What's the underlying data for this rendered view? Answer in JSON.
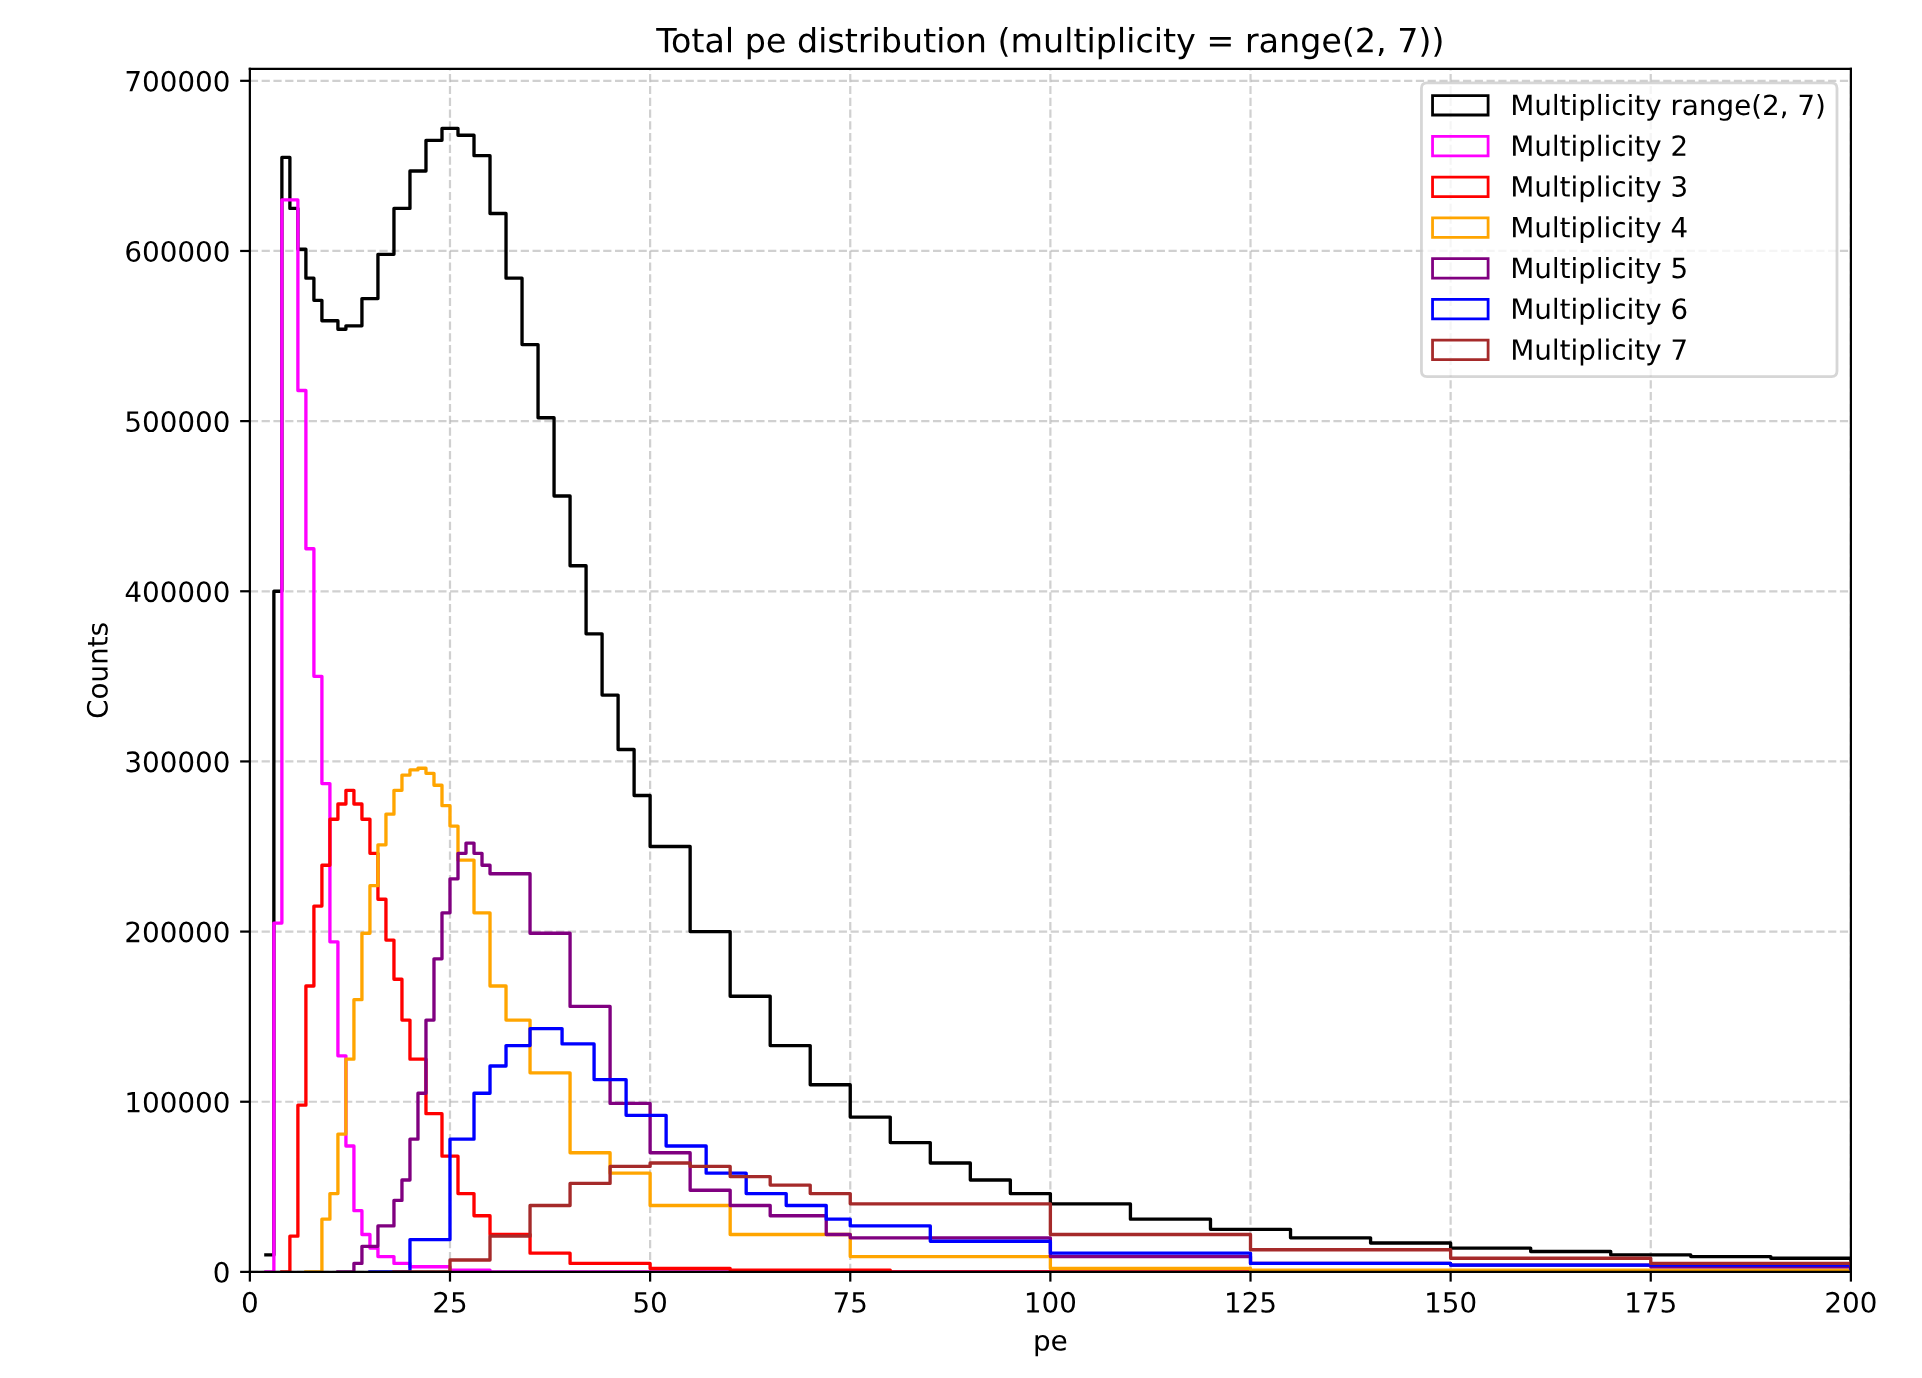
{
  "chart_data": {
    "type": "step",
    "title": "Total pe distribution (multiplicity = range(2, 7))",
    "xlabel": "pe",
    "ylabel": "Counts",
    "xlim": [
      0,
      200
    ],
    "xticks": [
      0,
      25,
      50,
      75,
      100,
      125,
      150,
      175,
      200
    ],
    "ylim": [
      0,
      707000
    ],
    "yticks": [
      0,
      100000,
      200000,
      300000,
      400000,
      500000,
      600000,
      700000
    ],
    "grid": true,
    "legend": "top right",
    "series": [
      {
        "name": "Multiplicity range(2, 7)",
        "color": "#000000",
        "x": [
          2,
          3,
          4,
          5,
          6,
          7,
          8,
          9,
          11,
          12,
          14,
          16,
          18,
          20,
          22,
          24,
          26,
          28,
          30,
          32,
          34,
          36,
          38,
          40,
          42,
          44,
          46,
          48,
          50,
          55,
          60,
          65,
          70,
          75,
          80,
          85,
          90,
          95,
          100,
          110,
          120,
          130,
          140,
          150,
          160,
          170,
          180,
          190,
          200
        ],
        "values": [
          10000,
          400000,
          655000,
          625000,
          601000,
          584000,
          571000,
          559000,
          554000,
          556000,
          572000,
          598000,
          625000,
          647000,
          665000,
          672000,
          668000,
          656000,
          622000,
          584000,
          545000,
          502000,
          456000,
          415000,
          375000,
          339000,
          307000,
          280000,
          250000,
          200000,
          162000,
          133000,
          110000,
          91000,
          76000,
          64000,
          54000,
          46000,
          40000,
          31000,
          25000,
          20000,
          17000,
          14000,
          12000,
          10000,
          9000,
          8000,
          7000
        ]
      },
      {
        "name": "Multiplicity 2",
        "color": "#ff00ff",
        "x": [
          2,
          3,
          4,
          6,
          7,
          8,
          9,
          10,
          11,
          12,
          13,
          14,
          15,
          16,
          18,
          20,
          25,
          30,
          40,
          200
        ],
        "values": [
          0,
          205000,
          630000,
          518000,
          425000,
          350000,
          287000,
          194000,
          127000,
          74000,
          36000,
          22000,
          14000,
          9000,
          5000,
          3000,
          1000,
          0,
          0,
          0
        ]
      },
      {
        "name": "Multiplicity 3",
        "color": "#ff0000",
        "x": [
          4,
          5,
          6,
          7,
          8,
          9,
          10,
          11,
          12,
          13,
          14,
          15,
          16,
          17,
          18,
          19,
          20,
          22,
          24,
          26,
          28,
          30,
          35,
          40,
          50,
          60,
          80,
          200
        ],
        "values": [
          0,
          21000,
          98000,
          168000,
          215000,
          239000,
          266000,
          275000,
          283000,
          275000,
          266000,
          246000,
          219000,
          195000,
          172000,
          148000,
          125000,
          93000,
          68000,
          46000,
          33000,
          22000,
          11000,
          5000,
          2000,
          1000,
          0,
          0
        ]
      },
      {
        "name": "Multiplicity 4",
        "color": "#ffa500",
        "x": [
          7,
          9,
          10,
          11,
          12,
          13,
          14,
          15,
          16,
          17,
          18,
          19,
          20,
          21,
          22,
          23,
          24,
          25,
          26,
          28,
          30,
          32,
          35,
          40,
          45,
          50,
          60,
          75,
          100,
          125,
          150,
          200
        ],
        "values": [
          0,
          31000,
          46000,
          81000,
          125000,
          160000,
          199000,
          227000,
          251000,
          269000,
          283000,
          292000,
          295000,
          296000,
          293000,
          286000,
          274000,
          262000,
          242000,
          211000,
          168000,
          148000,
          117000,
          70000,
          58000,
          39000,
          22000,
          9000,
          2000,
          1000,
          1000,
          0
        ]
      },
      {
        "name": "Multiplicity 5",
        "color": "#800080",
        "x": [
          11,
          13,
          14,
          16,
          18,
          19,
          20,
          21,
          22,
          23,
          24,
          25,
          26,
          27,
          28,
          29,
          30,
          35,
          40,
          45,
          50,
          55,
          60,
          65,
          72,
          75,
          100,
          125,
          150,
          175,
          200
        ],
        "values": [
          0,
          5000,
          15000,
          27000,
          42000,
          54000,
          78000,
          105000,
          148000,
          184000,
          211000,
          231000,
          246000,
          252000,
          246000,
          239000,
          234000,
          199000,
          156000,
          99000,
          70000,
          48000,
          39000,
          33000,
          22000,
          20000,
          9000,
          5000,
          4000,
          3000,
          2000
        ]
      },
      {
        "name": "Multiplicity 6",
        "color": "#0000ff",
        "x": [
          15,
          20,
          25,
          28,
          30,
          32,
          35,
          39,
          43,
          47,
          52,
          57,
          62,
          67,
          72,
          75,
          85,
          100,
          125,
          150,
          200
        ],
        "values": [
          0,
          19000,
          78000,
          105000,
          121000,
          133000,
          143000,
          134000,
          113000,
          92000,
          74000,
          58000,
          46000,
          39000,
          31000,
          27000,
          18000,
          11000,
          5000,
          4000,
          2000
        ]
      },
      {
        "name": "Multiplicity 7",
        "color": "#a52a2a",
        "x": [
          18,
          25,
          30,
          35,
          40,
          45,
          50,
          55,
          60,
          65,
          70,
          75,
          100,
          125,
          150,
          175,
          200
        ],
        "values": [
          0,
          7000,
          21000,
          39000,
          52000,
          62000,
          64000,
          62000,
          56000,
          51000,
          46000,
          40000,
          22000,
          13000,
          8000,
          5000,
          4000
        ]
      }
    ]
  }
}
